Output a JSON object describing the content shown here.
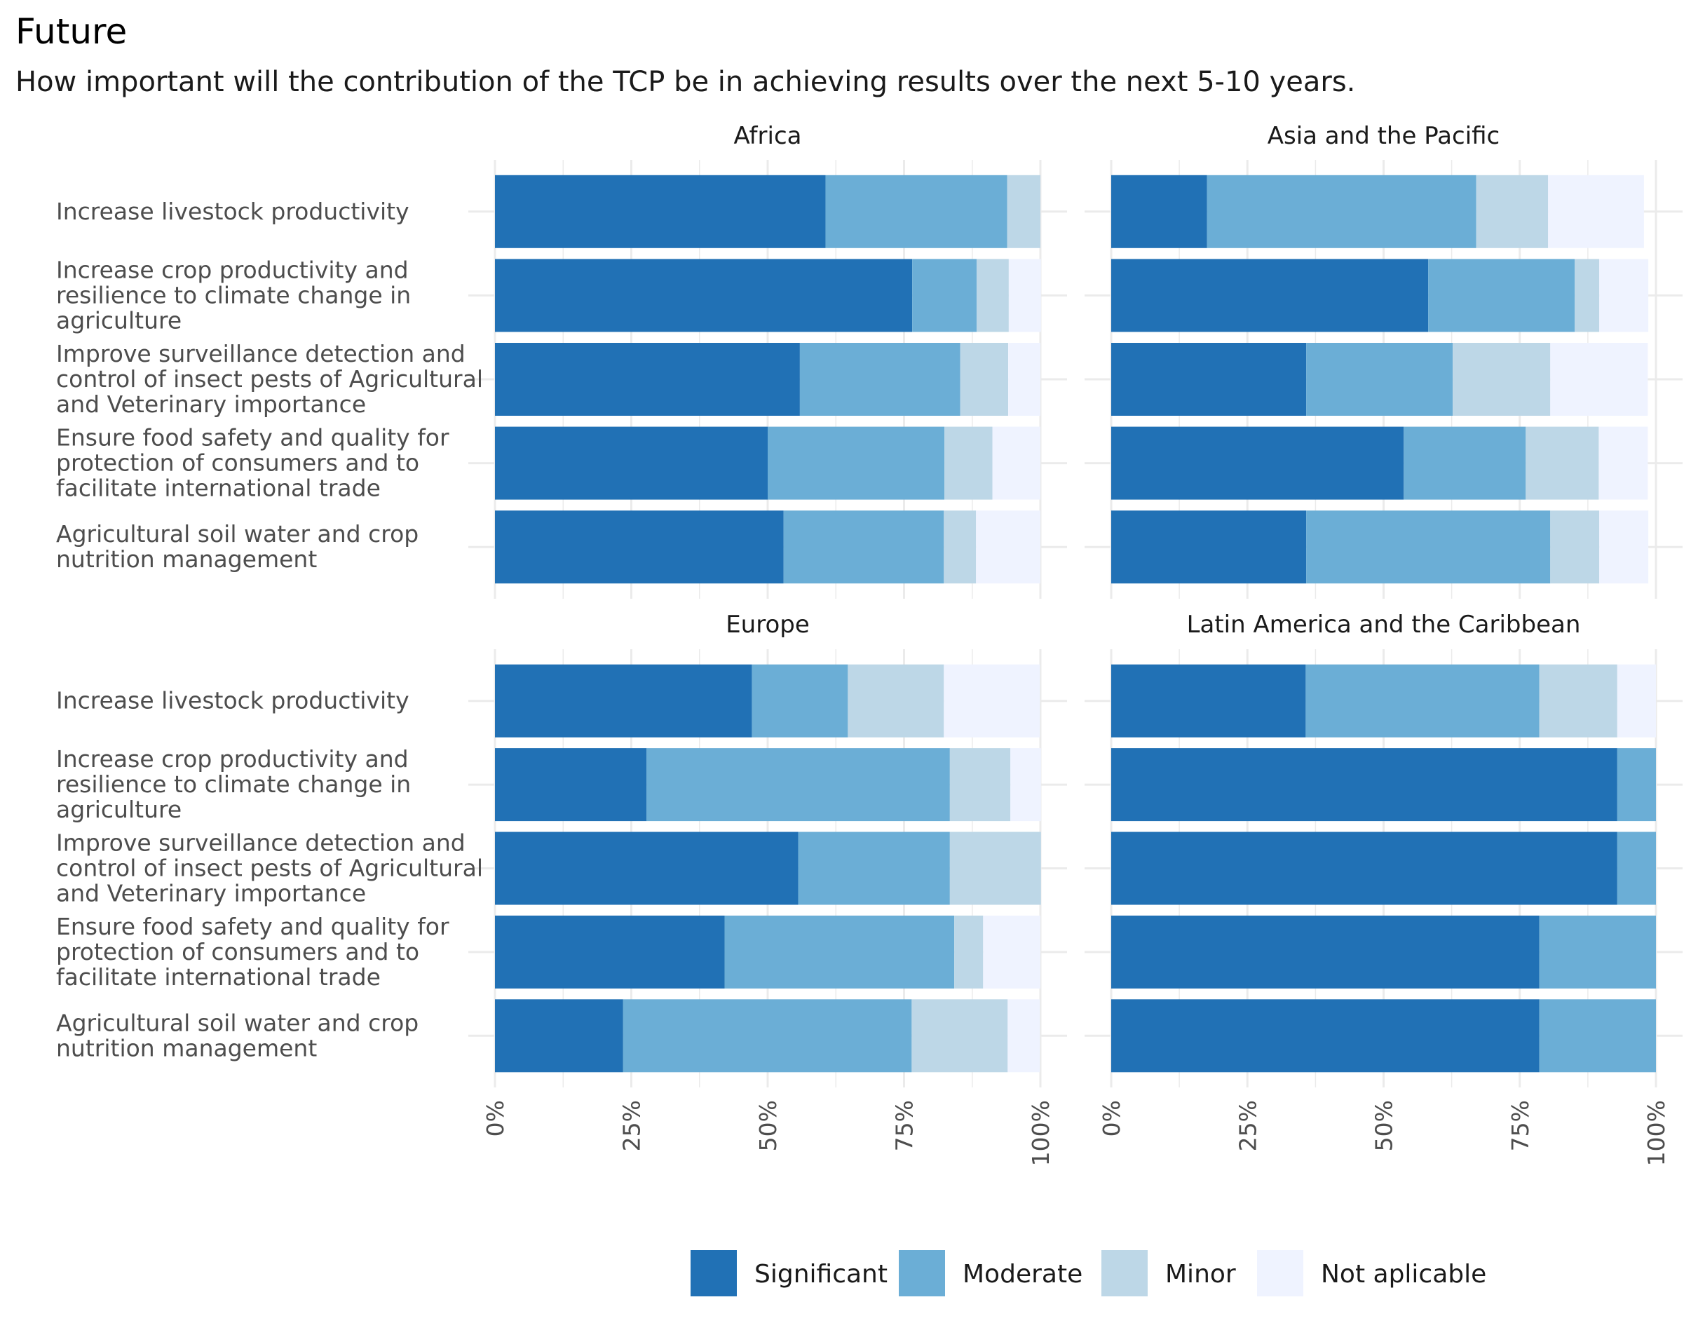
{
  "title": "Future",
  "subtitle": "How important will the contribution of the TCP be in achieving results over the next 5-10 years.",
  "colors": {
    "Significant": "#2171b5",
    "Moderate": "#6baed6",
    "Minor": "#bdd7e7",
    "Not aplicable": "#eff3ff"
  },
  "chart_data": {
    "type": "bar",
    "orientation": "horizontal",
    "stacked": true,
    "facets": [
      "Africa",
      "Asia and the Pacific",
      "Europe",
      "Latin America and the Caribbean"
    ],
    "categories": [
      "Increase livestock productivity",
      "Increase crop productivity and resilience to climate change in agriculture",
      "Improve surveillance detection and control of insect pests of Agricultural and Veterinary importance",
      "Ensure food safety and quality for protection of consumers and to facilitate international trade",
      "Agricultural soil water and crop nutrition management"
    ],
    "category_lines": [
      [
        "Increase livestock productivity"
      ],
      [
        "Increase crop productivity and",
        "resilience to climate change in",
        "agriculture"
      ],
      [
        "Improve surveillance detection and",
        "control of insect pests of Agricultural",
        "and Veterinary importance"
      ],
      [
        "Ensure food safety and quality for",
        "protection of consumers and to",
        "facilitate international trade"
      ],
      [
        "Agricultural soil water and crop",
        "nutrition management"
      ]
    ],
    "series_names": [
      "Significant",
      "Moderate",
      "Minor",
      "Not aplicable"
    ],
    "values": {
      "Africa": [
        [
          60.6,
          33.3,
          6.1,
          0.0
        ],
        [
          76.5,
          11.8,
          5.9,
          5.9
        ],
        [
          55.9,
          29.4,
          8.8,
          5.9
        ],
        [
          50.0,
          32.4,
          8.8,
          8.8
        ],
        [
          52.9,
          29.4,
          5.9,
          11.8
        ]
      ],
      "Asia and the Pacific": [
        [
          17.6,
          49.4,
          13.2,
          17.6
        ],
        [
          58.2,
          26.9,
          4.5,
          9.0
        ],
        [
          35.8,
          26.9,
          17.9,
          17.9
        ],
        [
          53.7,
          22.4,
          13.4,
          9.0
        ],
        [
          35.8,
          44.8,
          9.0,
          9.0
        ]
      ],
      "Europe": [
        [
          47.1,
          17.6,
          17.6,
          17.6
        ],
        [
          27.8,
          55.6,
          11.1,
          5.6
        ],
        [
          55.6,
          27.8,
          16.7,
          0.0
        ],
        [
          42.1,
          42.1,
          5.3,
          10.5
        ],
        [
          23.5,
          52.9,
          17.6,
          5.9
        ]
      ],
      "Latin America and the Caribbean": [
        [
          35.7,
          42.9,
          14.3,
          7.1
        ],
        [
          92.9,
          7.1,
          0.0,
          0.0
        ],
        [
          92.9,
          7.1,
          0.0,
          0.0
        ],
        [
          78.6,
          21.4,
          0.0,
          0.0
        ],
        [
          78.6,
          21.4,
          0.0,
          0.0
        ]
      ]
    },
    "x_ticks": [
      "0%",
      "25%",
      "50%",
      "75%",
      "100%"
    ],
    "xlim": [
      0,
      100
    ],
    "xlabel": "",
    "ylabel": "",
    "legend_position": "bottom",
    "grid": true
  }
}
